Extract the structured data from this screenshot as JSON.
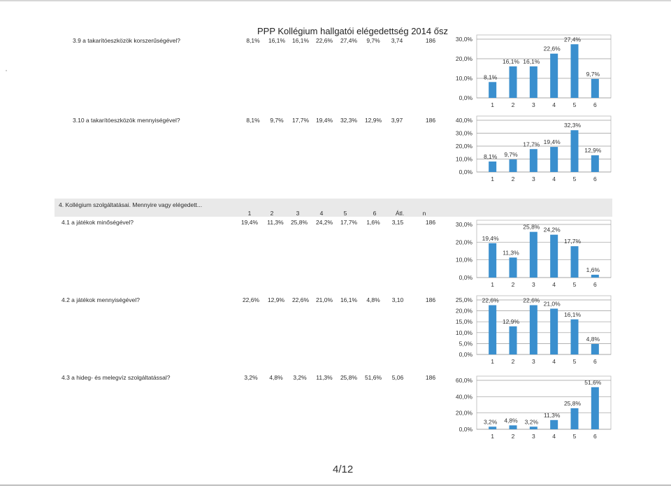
{
  "doc_title": "PPP Kollégium hallgatói elégedettség 2014 ősz",
  "page_number": "4/12",
  "section": {
    "title": "4.   Kollégium szolgáltatásai. Mennyire vagy elégedett...",
    "headers": [
      "1",
      "2",
      "3",
      "4",
      "5",
      "6",
      "Átl.",
      "n"
    ]
  },
  "rows": [
    {
      "label": "3.9 a takarítóeszközök korszerűségével?",
      "cells": [
        "8,1%",
        "16,1%",
        "16,1%",
        "22,6%",
        "27,4%",
        "9,7%",
        "3,74",
        "186"
      ]
    },
    {
      "label": "3.10 a takarítóeszközök mennyiségével?",
      "cells": [
        "8,1%",
        "9,7%",
        "17,7%",
        "19,4%",
        "32,3%",
        "12,9%",
        "3,97",
        "186"
      ]
    },
    {
      "label": "4.1 a játékok minőségével?",
      "cells": [
        "19,4%",
        "11,3%",
        "25,8%",
        "24,2%",
        "17,7%",
        "1,6%",
        "3,15",
        "186"
      ]
    },
    {
      "label": "4.2 a játékok mennyiségével?",
      "cells": [
        "22,6%",
        "12,9%",
        "22,6%",
        "21,0%",
        "16,1%",
        "4,8%",
        "3,10",
        "186"
      ]
    },
    {
      "label": "4.3 a hideg- és melegvíz szolgáltatással?",
      "cells": [
        "3,2%",
        "4,8%",
        "3,2%",
        "11,3%",
        "25,8%",
        "51,6%",
        "5,06",
        "186"
      ]
    }
  ],
  "chart_data": [
    {
      "type": "bar",
      "categories": [
        "1",
        "2",
        "3",
        "4",
        "5",
        "6"
      ],
      "values": [
        8.1,
        16.1,
        16.1,
        22.6,
        27.4,
        9.7
      ],
      "labels": [
        "8,1%",
        "16,1%",
        "16,1%",
        "22,6%",
        "27,4%",
        "9,7%"
      ],
      "yticks": [
        0,
        10,
        20,
        30
      ],
      "ytick_labels": [
        "0,0%",
        "10,0%",
        "20,0%",
        "30,0%"
      ],
      "ylim": [
        0,
        30
      ],
      "color": "#3a8fce",
      "grid": true
    },
    {
      "type": "bar",
      "categories": [
        "1",
        "2",
        "3",
        "4",
        "5",
        "6"
      ],
      "values": [
        8.1,
        9.7,
        17.7,
        19.4,
        32.3,
        12.9
      ],
      "labels": [
        "8,1%",
        "9,7%",
        "17,7%",
        "19,4%",
        "32,3%",
        "12,9%"
      ],
      "yticks": [
        0,
        10,
        20,
        30,
        40
      ],
      "ytick_labels": [
        "0,0%",
        "10,0%",
        "20,0%",
        "30,0%",
        "40,0%"
      ],
      "ylim": [
        0,
        40
      ],
      "color": "#3a8fce",
      "grid": true
    },
    {
      "type": "bar",
      "categories": [
        "1",
        "2",
        "3",
        "4",
        "5",
        "6"
      ],
      "values": [
        19.4,
        11.3,
        25.8,
        24.2,
        17.7,
        1.6
      ],
      "labels": [
        "19,4%",
        "11,3%",
        "25,8%",
        "24,2%",
        "17,7%",
        "1,6%"
      ],
      "yticks": [
        0,
        10,
        20,
        30
      ],
      "ytick_labels": [
        "0,0%",
        "10,0%",
        "20,0%",
        "30,0%"
      ],
      "ylim": [
        0,
        30
      ],
      "color": "#3a8fce",
      "grid": true
    },
    {
      "type": "bar",
      "categories": [
        "1",
        "2",
        "3",
        "4",
        "5",
        "6"
      ],
      "values": [
        22.6,
        12.9,
        22.6,
        21.0,
        16.1,
        4.8
      ],
      "labels": [
        "22,6%",
        "12,9%",
        "22,6%",
        "21,0%",
        "16,1%",
        "4,8%"
      ],
      "yticks": [
        0,
        5,
        10,
        15,
        20,
        25
      ],
      "ytick_labels": [
        "0,0%",
        "5,0%",
        "10,0%",
        "15,0%",
        "20,0%",
        "25,0%"
      ],
      "ylim": [
        0,
        25
      ],
      "color": "#3a8fce",
      "grid": true
    },
    {
      "type": "bar",
      "categories": [
        "1",
        "2",
        "3",
        "4",
        "5",
        "6"
      ],
      "values": [
        3.2,
        4.8,
        3.2,
        11.3,
        25.8,
        51.6
      ],
      "labels": [
        "3,2%",
        "4,8%",
        "3,2%",
        "11,3%",
        "25,8%",
        "51,6%"
      ],
      "yticks": [
        0,
        20,
        40,
        60
      ],
      "ytick_labels": [
        "0,0%",
        "20,0%",
        "40,0%",
        "60,0%"
      ],
      "ylim": [
        0,
        60
      ],
      "color": "#3a8fce",
      "grid": true
    }
  ]
}
